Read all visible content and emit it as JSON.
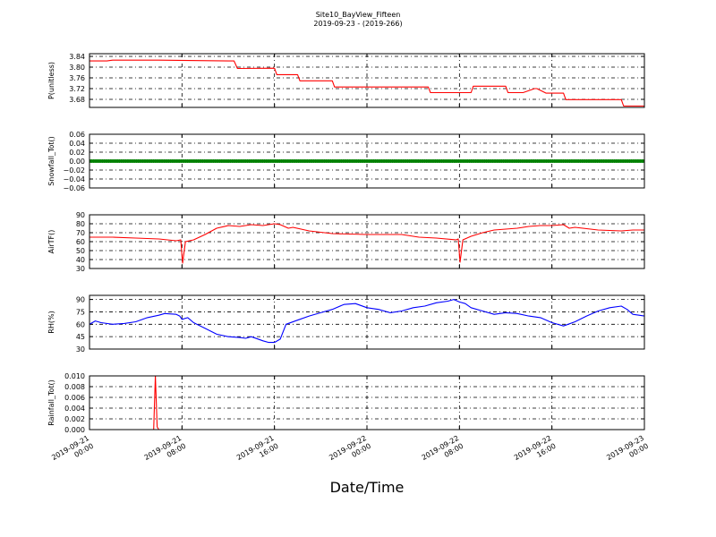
{
  "header": {
    "title": "Site10_BayView_Fifteen",
    "subtitle": "2019-09-23 - (2019-266)"
  },
  "xaxis": {
    "label": "Date/Time",
    "ticks": [
      {
        "t": 0,
        "line1": "2019-09-21",
        "line2": "00:00"
      },
      {
        "t": 8,
        "line1": "2019-09-21",
        "line2": "08:00"
      },
      {
        "t": 16,
        "line1": "2019-09-21",
        "line2": "16:00"
      },
      {
        "t": 24,
        "line1": "2019-09-22",
        "line2": "00:00"
      },
      {
        "t": 32,
        "line1": "2019-09-22",
        "line2": "08:00"
      },
      {
        "t": 40,
        "line1": "2019-09-22",
        "line2": "16:00"
      },
      {
        "t": 48,
        "line1": "2019-09-23",
        "line2": "00:00"
      }
    ],
    "range": [
      0,
      48
    ]
  },
  "chart_data": [
    {
      "type": "line",
      "ylabel": "P(unitless)",
      "ylim": [
        3.65,
        3.85
      ],
      "yticks": [
        "3.84",
        "3.80",
        "3.76",
        "3.72",
        "3.68"
      ],
      "ytick_values": [
        3.84,
        3.8,
        3.76,
        3.72,
        3.68
      ],
      "grid": true,
      "color": "#ff0000",
      "x": [
        0,
        1.5,
        2,
        6,
        12.5,
        12.8,
        16,
        16.2,
        18,
        18.2,
        21,
        21.2,
        27,
        29.3,
        29.5,
        33,
        33.2,
        36,
        36.2,
        37.5,
        38.5,
        38.7,
        39.5,
        41,
        41.2,
        46,
        46.2,
        48
      ],
      "y": [
        3.823,
        3.823,
        3.826,
        3.826,
        3.823,
        3.795,
        3.796,
        3.772,
        3.772,
        3.749,
        3.749,
        3.726,
        3.726,
        3.726,
        3.705,
        3.705,
        3.729,
        3.729,
        3.705,
        3.705,
        3.72,
        3.72,
        3.703,
        3.703,
        3.679,
        3.679,
        3.655,
        3.655
      ]
    },
    {
      "type": "scatter",
      "ylabel": "Snowfall_Tot()",
      "ylim": [
        -0.06,
        0.06
      ],
      "yticks": [
        "0.06",
        "0.04",
        "0.02",
        "0.00",
        "−0.02",
        "−0.04",
        "−0.06"
      ],
      "ytick_values": [
        0.06,
        0.04,
        0.02,
        0,
        -0.02,
        -0.04,
        -0.06
      ],
      "grid": true,
      "color": "#008000",
      "x_range": [
        0,
        48
      ],
      "constant_value": 0.0
    },
    {
      "type": "line",
      "ylabel": "AirTF()",
      "ylim": [
        30,
        90
      ],
      "yticks": [
        "90",
        "80",
        "70",
        "60",
        "50",
        "40",
        "30"
      ],
      "ytick_values": [
        90,
        80,
        70,
        60,
        50,
        40,
        30
      ],
      "grid": true,
      "color": "#ff0000",
      "x": [
        0,
        2,
        4,
        6,
        7.5,
        7.9,
        8.05,
        8.3,
        9,
        10,
        11,
        12,
        13,
        14,
        15,
        16,
        16.5,
        17.2,
        17.6,
        19,
        21,
        24,
        27,
        28.5,
        30,
        31.7,
        31.9,
        32.05,
        32.3,
        33,
        34,
        35,
        36,
        37,
        38,
        39,
        40,
        41,
        41.5,
        42,
        44,
        46,
        47,
        48
      ],
      "y": [
        65,
        65,
        64,
        63,
        61,
        62,
        36,
        60,
        62,
        68,
        75,
        78,
        77,
        79,
        78,
        80,
        79,
        75,
        76,
        72,
        69,
        68,
        68,
        65,
        64,
        62,
        63,
        37,
        62,
        66,
        70,
        73,
        74,
        75,
        77,
        78,
        78,
        79,
        75,
        76,
        73,
        72,
        73,
        73
      ]
    },
    {
      "type": "line",
      "ylabel": "RH(%)",
      "ylim": [
        30,
        95
      ],
      "yticks": [
        "90",
        "75",
        "60",
        "45",
        "30"
      ],
      "ytick_values": [
        90,
        75,
        60,
        45,
        30
      ],
      "grid": true,
      "color": "#0000ff",
      "x": [
        0,
        0.5,
        1,
        2,
        3,
        4,
        5,
        6,
        6.5,
        7.5,
        7.8,
        8,
        8.5,
        9,
        10,
        11,
        12,
        13,
        13.5,
        14,
        15,
        15.5,
        16,
        16.5,
        17,
        18,
        19,
        20,
        21,
        22,
        23,
        24,
        25,
        26,
        27,
        28,
        29,
        30,
        31,
        31.5,
        32,
        32.5,
        33,
        34,
        35,
        36,
        37,
        38,
        39,
        40,
        41,
        42,
        43,
        44,
        45,
        46,
        46.5,
        47,
        48
      ],
      "y": [
        60,
        64,
        62,
        60,
        61,
        63,
        68,
        71,
        73,
        72,
        70,
        66,
        68,
        62,
        55,
        48,
        45,
        44,
        43,
        45,
        40,
        38,
        38,
        42,
        60,
        65,
        70,
        74,
        78,
        84,
        85,
        80,
        78,
        74,
        76,
        80,
        82,
        86,
        88,
        90,
        87,
        85,
        80,
        76,
        72,
        74,
        73,
        70,
        68,
        62,
        58,
        63,
        70,
        76,
        80,
        82,
        78,
        72,
        70
      ]
    },
    {
      "type": "line",
      "ylabel": "Rainfall_Tot()",
      "ylim": [
        0,
        0.01
      ],
      "yticks": [
        "0.010",
        "0.008",
        "0.006",
        "0.004",
        "0.002",
        "0.000"
      ],
      "ytick_values": [
        0.01,
        0.008,
        0.006,
        0.004,
        0.002,
        0
      ],
      "grid": true,
      "color": "#ff0000",
      "x": [
        0,
        5.55,
        5.7,
        5.85,
        6.0,
        48
      ],
      "y": [
        0,
        0,
        0.01,
        0.0005,
        0,
        0
      ]
    }
  ]
}
